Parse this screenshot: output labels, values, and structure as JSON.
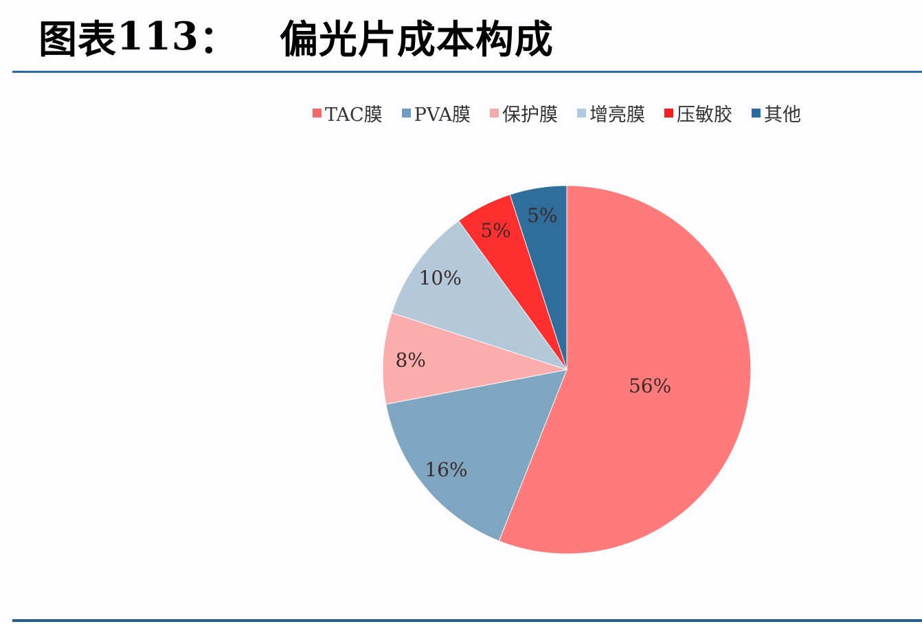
{
  "header": {
    "figure_label": "图表",
    "figure_number": "113",
    "separator": "：",
    "title": "偏光片成本构成"
  },
  "chart_data": {
    "type": "pie",
    "title": "偏光片成本构成",
    "legend_position": "top",
    "start_angle_deg": 0,
    "direction": "clockwise",
    "categories": [
      "TAC膜",
      "PVA膜",
      "保护膜",
      "增亮膜",
      "压敏胶",
      "其他"
    ],
    "values": [
      56,
      16,
      8,
      10,
      5,
      5
    ],
    "labels": [
      "56%",
      "16%",
      "8%",
      "10%",
      "5%",
      "5%"
    ],
    "colors": [
      "#ff7b7b",
      "#7fa6c0",
      "#fbadad",
      "#b3c8d8",
      "#ff2f2f",
      "#2f6e9a"
    ],
    "unit": "%"
  },
  "legend": {
    "items": [
      {
        "label": "TAC膜",
        "color": "#f26a6a"
      },
      {
        "label": "PVA膜",
        "color": "#6f9cc4"
      },
      {
        "label": "保护膜",
        "color": "#f7aaaa"
      },
      {
        "label": "增亮膜",
        "color": "#aecbe3"
      },
      {
        "label": "压敏胶",
        "color": "#f41e1e"
      },
      {
        "label": "其他",
        "color": "#2a6aa3"
      }
    ]
  }
}
